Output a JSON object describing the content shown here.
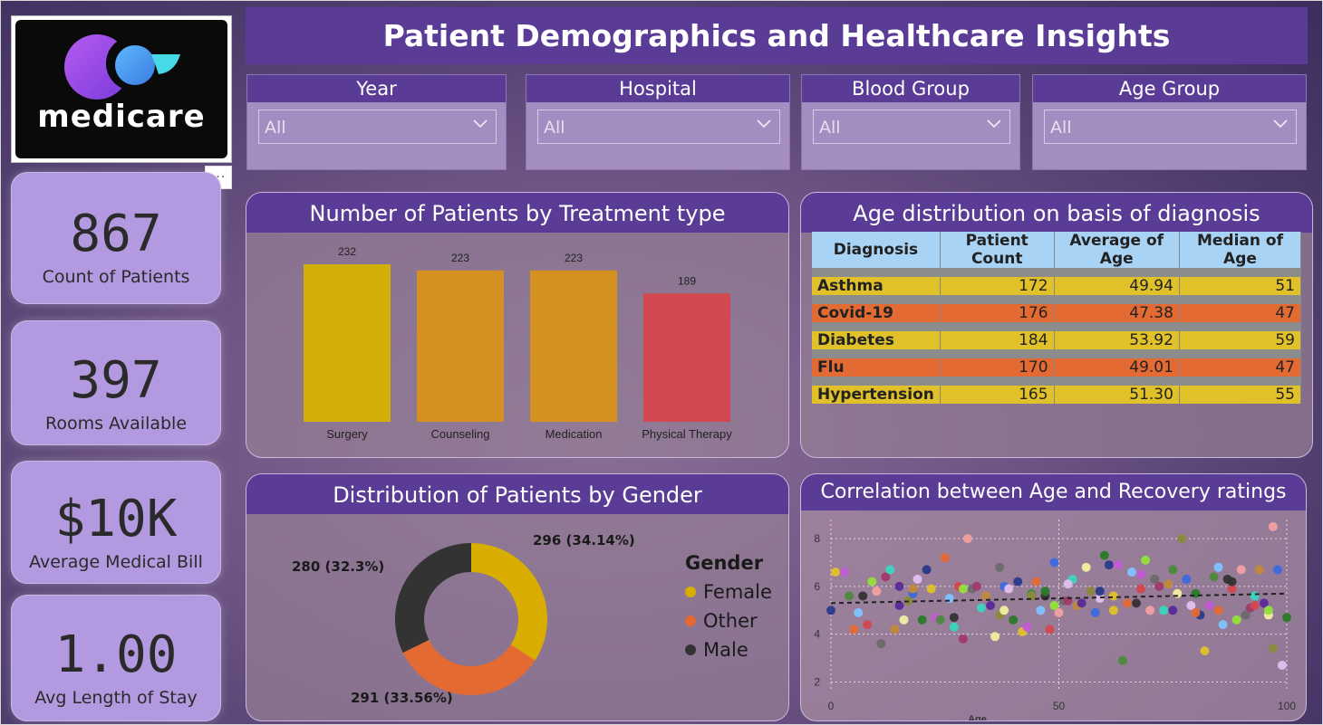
{
  "header": {
    "title": "Patient Demographics and Healthcare Insights"
  },
  "logo": {
    "text": "medicare"
  },
  "more_label": "···",
  "kpis": [
    {
      "value": "867",
      "label": "Count of Patients"
    },
    {
      "value": "397",
      "label": "Rooms Available"
    },
    {
      "value": "$10K",
      "label": "Average Medical Bill"
    },
    {
      "value": "1.00",
      "label": "Avg Length of Stay"
    }
  ],
  "slicers": [
    {
      "title": "Year",
      "value": "All"
    },
    {
      "title": "Hospital",
      "value": "All"
    },
    {
      "title": "Blood Group",
      "value": "All"
    },
    {
      "title": "Age Group",
      "value": "All"
    }
  ],
  "treatment_chart": {
    "title": "Number of Patients by Treatment type",
    "chart_data": {
      "type": "bar",
      "categories": [
        "Surgery",
        "Counseling",
        "Medication",
        "Physical Therapy"
      ],
      "values": [
        232,
        223,
        223,
        189
      ],
      "colors": [
        "#d2ae08",
        "#d49021",
        "#d49021",
        "#d34850"
      ],
      "ylim": [
        0,
        232
      ]
    }
  },
  "diagnosis_table": {
    "title": "Age distribution on basis of diagnosis",
    "columns": [
      "Diagnosis",
      "Patient Count",
      "Average of Age",
      "Median of Age"
    ],
    "rows": [
      {
        "name": "Asthma",
        "count": "172",
        "avg": "49.94",
        "median": "51",
        "color": "#e0c12a"
      },
      {
        "name": "Covid-19",
        "count": "176",
        "avg": "47.38",
        "median": "47",
        "color": "#e46a33"
      },
      {
        "name": "Diabetes",
        "count": "184",
        "avg": "53.92",
        "median": "59",
        "color": "#e0c12a"
      },
      {
        "name": "Flu",
        "count": "170",
        "avg": "49.01",
        "median": "47",
        "color": "#e46a33"
      },
      {
        "name": "Hypertension",
        "count": "165",
        "avg": "51.30",
        "median": "55",
        "color": "#e0c12a"
      }
    ]
  },
  "gender_chart": {
    "title": "Distribution of Patients by Gender",
    "legend_title": "Gender",
    "chart_data": {
      "type": "pie",
      "slices": [
        {
          "name": "Female",
          "value": 296,
          "label": "296 (34.14%)",
          "color": "#d8ad00"
        },
        {
          "name": "Other",
          "value": 291,
          "label": "291 (33.56%)",
          "color": "#e46a33"
        },
        {
          "name": "Male",
          "value": 280,
          "label": "280 (32.3%)",
          "color": "#333333"
        }
      ]
    }
  },
  "scatter_chart": {
    "title": "Correlation between Age and Recovery ratings",
    "chart_data": {
      "type": "scatter",
      "xlabel": "Age",
      "ylabel": "",
      "xlim": [
        0,
        100
      ],
      "ylim": [
        1.6,
        8.8
      ],
      "xticks": [
        0,
        50,
        100
      ],
      "yticks": [
        2,
        4,
        6,
        8
      ],
      "trend": [
        [
          0,
          5.3
        ],
        [
          100,
          5.7
        ]
      ],
      "points": [
        [
          0,
          5
        ],
        [
          1,
          6.6
        ],
        [
          3,
          6.6
        ],
        [
          4,
          5.6
        ],
        [
          5,
          4.2
        ],
        [
          6,
          4.9
        ],
        [
          7,
          5.6
        ],
        [
          8,
          4.4
        ],
        [
          9,
          6.2
        ],
        [
          10,
          5.8
        ],
        [
          11,
          3.6
        ],
        [
          12,
          6.4
        ],
        [
          13,
          6.7
        ],
        [
          14,
          4.2
        ],
        [
          15,
          5.2
        ],
        [
          16,
          4.6
        ],
        [
          17,
          5.4
        ],
        [
          18,
          5.7
        ],
        [
          19,
          6.3
        ],
        [
          20,
          4.6
        ],
        [
          21,
          6.7
        ],
        [
          22,
          5.9
        ],
        [
          23,
          4.7
        ],
        [
          24,
          4.6
        ],
        [
          25,
          7.2
        ],
        [
          26,
          5.5
        ],
        [
          27,
          4.7
        ],
        [
          28,
          6
        ],
        [
          29,
          5.9
        ],
        [
          30,
          8
        ],
        [
          31,
          5.9
        ],
        [
          32,
          6.0
        ],
        [
          33,
          5.1
        ],
        [
          34,
          5.6
        ],
        [
          35,
          5.2
        ],
        [
          36,
          3.9
        ],
        [
          37,
          4.8
        ],
        [
          38,
          6.0
        ],
        [
          39,
          5.9
        ],
        [
          40,
          4.6
        ],
        [
          41,
          6.2
        ],
        [
          42,
          4.1
        ],
        [
          43,
          4.3
        ],
        [
          44,
          5.7
        ],
        [
          45,
          6.2
        ],
        [
          46,
          5.0
        ],
        [
          47,
          5.6
        ],
        [
          48,
          4.2
        ],
        [
          49,
          5.2
        ],
        [
          50,
          4.9
        ],
        [
          51,
          5.4
        ],
        [
          52,
          5.4
        ],
        [
          53,
          6.3
        ],
        [
          54,
          5.2
        ],
        [
          55,
          5.3
        ],
        [
          56,
          6.8
        ],
        [
          57,
          5.8
        ],
        [
          58,
          4.9
        ],
        [
          59,
          5.5
        ],
        [
          60,
          7.3
        ],
        [
          61,
          6.9
        ],
        [
          62,
          5.0
        ],
        [
          63,
          6.9
        ],
        [
          64,
          2.9
        ],
        [
          65,
          5.3
        ],
        [
          66,
          6.6
        ],
        [
          67,
          5.3
        ],
        [
          68,
          5.9
        ],
        [
          69,
          7.1
        ],
        [
          70,
          5.0
        ],
        [
          71,
          6.3
        ],
        [
          72,
          6.0
        ],
        [
          73,
          5.0
        ],
        [
          74,
          6.1
        ],
        [
          75,
          5.0
        ],
        [
          76,
          5.7
        ],
        [
          77,
          8.0
        ],
        [
          78,
          6.3
        ],
        [
          79,
          5.2
        ],
        [
          80,
          5.7
        ],
        [
          81,
          4.8
        ],
        [
          82,
          3.3
        ],
        [
          83,
          5.2
        ],
        [
          84,
          6.4
        ],
        [
          85,
          5.0
        ],
        [
          86,
          4.4
        ],
        [
          87,
          6.3
        ],
        [
          88,
          5.9
        ],
        [
          89,
          4.6
        ],
        [
          90,
          6.7
        ],
        [
          91,
          4.8
        ],
        [
          92,
          5.1
        ],
        [
          93,
          5.6
        ],
        [
          94,
          6.7
        ],
        [
          95,
          5.3
        ],
        [
          96,
          4.8
        ],
        [
          97,
          3.4
        ],
        [
          98,
          6.7
        ],
        [
          99,
          2.7
        ],
        [
          100,
          4.7
        ],
        [
          59,
          5.8
        ],
        [
          62,
          5.6
        ],
        [
          68,
          6.5
        ],
        [
          75,
          6.7
        ],
        [
          80,
          4.9
        ],
        [
          85,
          6.8
        ],
        [
          88,
          6.2
        ],
        [
          93,
          5.2
        ],
        [
          96,
          5.0
        ],
        [
          97,
          8.5
        ],
        [
          37,
          6.8
        ],
        [
          29,
          3.8
        ],
        [
          27,
          4.3
        ],
        [
          18,
          5.9
        ],
        [
          15,
          6.0
        ],
        [
          38,
          5.0
        ],
        [
          44,
          5.6
        ],
        [
          49,
          7.0
        ],
        [
          52,
          6.1
        ],
        [
          47,
          5.8
        ]
      ]
    }
  }
}
